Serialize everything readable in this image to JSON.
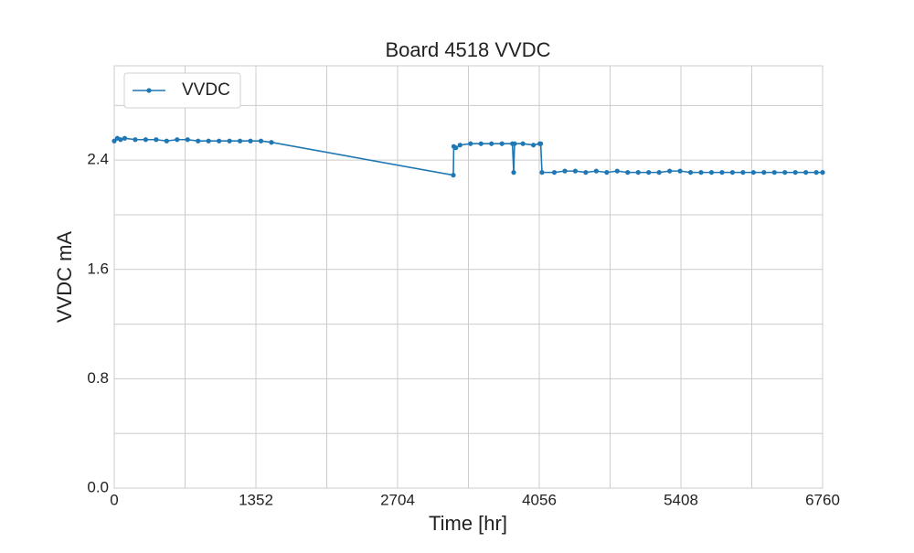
{
  "chart_data": {
    "type": "line",
    "title": "Board 4518 VVDC",
    "xlabel": "Time [hr]",
    "ylabel": "VVDC mA",
    "x": [
      0,
      30,
      60,
      100,
      200,
      300,
      400,
      500,
      600,
      700,
      800,
      900,
      1000,
      1100,
      1200,
      1300,
      1400,
      1500,
      3236,
      3240,
      3260,
      3300,
      3400,
      3500,
      3600,
      3700,
      3800,
      3812,
      3820,
      3900,
      4000,
      4060,
      4070,
      4082,
      4200,
      4300,
      4400,
      4500,
      4600,
      4700,
      4800,
      4900,
      5000,
      5100,
      5200,
      5300,
      5400,
      5500,
      5600,
      5700,
      5800,
      5900,
      6000,
      6100,
      6200,
      6300,
      6400,
      6500,
      6600,
      6700,
      6760
    ],
    "series": [
      {
        "name": "VVDC",
        "color": "#1f77b4",
        "values": [
          2.54,
          2.56,
          2.55,
          2.56,
          2.55,
          2.55,
          2.55,
          2.54,
          2.55,
          2.55,
          2.54,
          2.54,
          2.54,
          2.54,
          2.54,
          2.54,
          2.54,
          2.53,
          2.29,
          2.5,
          2.49,
          2.51,
          2.52,
          2.52,
          2.52,
          2.52,
          2.52,
          2.31,
          2.52,
          2.52,
          2.51,
          2.52,
          2.52,
          2.31,
          2.31,
          2.32,
          2.32,
          2.31,
          2.32,
          2.31,
          2.32,
          2.31,
          2.31,
          2.31,
          2.31,
          2.32,
          2.32,
          2.31,
          2.31,
          2.31,
          2.31,
          2.31,
          2.31,
          2.31,
          2.31,
          2.31,
          2.31,
          2.31,
          2.31,
          2.31,
          2.31
        ]
      }
    ],
    "xlim": [
      0,
      6760
    ],
    "xticks": [
      0,
      1352,
      2704,
      4056,
      5408,
      6760
    ],
    "ylim": [
      0,
      3.09
    ],
    "yticks": [
      {
        "value": 0,
        "label": "0.0"
      },
      0.8,
      1.6,
      2.4
    ],
    "xgrid_minor": [
      676,
      2028,
      3380,
      4732,
      6084
    ],
    "ygrid_minor": [
      0.4,
      1.2,
      2.0,
      2.8
    ],
    "grid": true,
    "legend": "upper left"
  }
}
